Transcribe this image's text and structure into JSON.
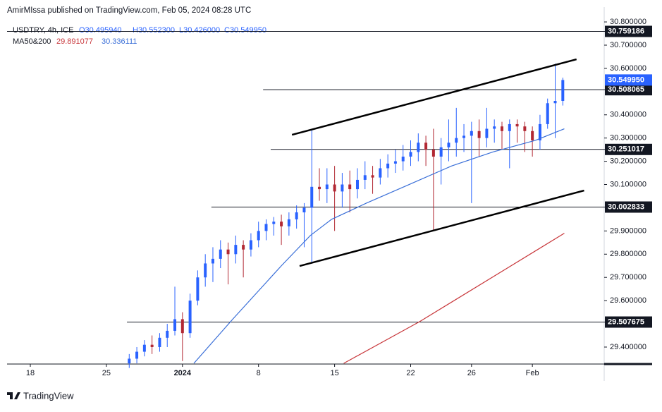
{
  "header": {
    "published": "AmirMIssa published on TradingView.com, Feb 05, 2024 08:28 UTC",
    "symbol": "USDTRY, 4h, ICE",
    "open": "O30.495940",
    "high": "H30.552300",
    "low": "L30.426000",
    "close": "C30.549950",
    "ma_label": "MA50&200",
    "ma200_value": "29.891077",
    "ma50_value": "30.336111"
  },
  "footer": {
    "logo": "TradingView"
  },
  "chart_data": {
    "type": "candlestick",
    "up_color": "#2962ff",
    "down_color": "#b22833",
    "xlim": [
      -1.53,
      37.72
    ],
    "ylim": [
      29.327,
      30.864
    ],
    "xticks": [
      {
        "value": 0,
        "label": "18"
      },
      {
        "value": 5,
        "label": "25"
      },
      {
        "value": 10,
        "label": "2024"
      },
      {
        "value": 15,
        "label": "8"
      },
      {
        "value": 20,
        "label": "15"
      },
      {
        "value": 25,
        "label": "22"
      },
      {
        "value": 29,
        "label": "26"
      },
      {
        "value": 33,
        "label": "Feb"
      }
    ],
    "yticks": [
      {
        "value": 30.8,
        "label": "30.800000"
      },
      {
        "value": 30.7,
        "label": "30.700000"
      },
      {
        "value": 30.6,
        "label": "30.600000"
      },
      {
        "value": 30.4,
        "label": "30.400000"
      },
      {
        "value": 30.3,
        "label": "30.300000"
      },
      {
        "value": 30.2,
        "label": "30.200000"
      },
      {
        "value": 30.1,
        "label": "30.100000"
      },
      {
        "value": 29.9,
        "label": "29.900000"
      },
      {
        "value": 29.8,
        "label": "29.800000"
      },
      {
        "value": 29.7,
        "label": "29.700000"
      },
      {
        "value": 29.6,
        "label": "29.600000"
      },
      {
        "value": 29.4,
        "label": "29.400000"
      }
    ],
    "x": [
      6.5,
      7,
      7.5,
      8,
      8.5,
      9,
      9.5,
      10,
      10.5,
      11,
      11.5,
      12,
      12.5,
      13,
      13.5,
      14,
      14.5,
      15,
      15.5,
      16,
      16.5,
      17,
      17.5,
      18,
      18.5,
      19,
      19.5,
      20,
      20.5,
      21,
      21.5,
      22,
      22.5,
      23,
      23.5,
      24,
      24.5,
      25,
      25.5,
      26,
      26.5,
      27,
      27.5,
      28,
      28.5,
      29,
      29.5,
      30,
      30.5,
      31,
      31.5,
      32,
      32.5,
      33,
      33.5,
      34,
      34.5,
      35
    ],
    "open": [
      29.33,
      29.35,
      29.38,
      29.41,
      29.4,
      29.44,
      29.47,
      29.52,
      29.46,
      29.6,
      29.7,
      29.76,
      29.78,
      29.82,
      29.8,
      29.84,
      29.82,
      29.86,
      29.9,
      29.93,
      29.94,
      29.92,
      29.95,
      29.98,
      30.0,
      30.09,
      30.08,
      30.1,
      30.07,
      30.1,
      30.08,
      30.12,
      30.14,
      30.13,
      30.17,
      30.19,
      30.2,
      30.22,
      30.24,
      30.28,
      30.25,
      30.22,
      30.26,
      30.28,
      30.3,
      30.31,
      30.33,
      30.3,
      30.34,
      30.35,
      30.33,
      30.36,
      30.35,
      30.33,
      30.29,
      30.36,
      30.45,
      30.46
    ],
    "high": [
      29.37,
      29.4,
      29.43,
      29.45,
      29.46,
      29.5,
      29.66,
      29.55,
      29.63,
      29.73,
      29.8,
      29.83,
      29.86,
      29.85,
      29.88,
      29.86,
      29.89,
      29.94,
      29.95,
      29.96,
      29.97,
      29.98,
      30.01,
      30.02,
      30.34,
      30.17,
      30.17,
      30.18,
      30.15,
      30.16,
      30.17,
      30.2,
      30.18,
      30.21,
      30.23,
      30.25,
      30.27,
      30.29,
      30.32,
      30.31,
      30.34,
      30.3,
      30.38,
      30.43,
      30.36,
      30.37,
      30.38,
      30.43,
      30.38,
      30.37,
      30.38,
      30.38,
      30.37,
      30.35,
      30.4,
      30.47,
      30.62,
      30.56
    ],
    "low": [
      29.31,
      29.33,
      29.36,
      29.37,
      29.38,
      29.4,
      29.45,
      29.34,
      29.44,
      29.58,
      29.66,
      29.68,
      29.74,
      29.67,
      29.76,
      29.7,
      29.79,
      29.83,
      29.86,
      29.88,
      29.84,
      29.88,
      29.91,
      29.83,
      29.76,
      30.03,
      30.02,
      29.9,
      30.0,
      29.98,
      30.04,
      30.08,
      30.06,
      30.1,
      30.13,
      30.15,
      30.16,
      30.18,
      30.2,
      30.18,
      29.9,
      30.1,
      30.2,
      30.22,
      30.24,
      30.02,
      30.22,
      30.26,
      30.28,
      30.25,
      30.17,
      30.28,
      30.24,
      30.22,
      30.25,
      30.34,
      30.3,
      30.44
    ],
    "close": [
      29.35,
      29.38,
      29.41,
      29.4,
      29.44,
      29.47,
      29.52,
      29.46,
      29.6,
      29.7,
      29.76,
      29.78,
      29.82,
      29.8,
      29.84,
      29.82,
      29.86,
      29.9,
      29.93,
      29.94,
      29.92,
      29.95,
      29.98,
      30.0,
      30.09,
      30.08,
      30.1,
      30.07,
      30.1,
      30.08,
      30.12,
      30.14,
      30.13,
      30.17,
      30.19,
      30.2,
      30.22,
      30.24,
      30.28,
      30.25,
      30.22,
      30.26,
      30.28,
      30.3,
      30.31,
      30.33,
      30.3,
      30.34,
      30.35,
      30.33,
      30.36,
      30.35,
      30.33,
      30.29,
      30.36,
      30.45,
      30.46,
      30.55
    ],
    "series": [
      {
        "color": "#3a6fd8",
        "x": [
          10.75,
          13.3,
          16.5,
          18.4,
          19.8,
          22.1,
          24.9,
          27.7,
          30.4,
          33.2,
          35.1
        ],
        "values": [
          29.33,
          29.52,
          29.75,
          29.88,
          29.95,
          30.02,
          30.1,
          30.18,
          30.24,
          30.29,
          30.34
        ]
      },
      {
        "color": "#c8373b",
        "x": [
          20.6,
          25.6,
          35.1
        ],
        "values": [
          29.33,
          29.51,
          29.89
        ]
      }
    ],
    "hlines": [
      {
        "value": 30.759186,
        "start": -1.53
      },
      {
        "value": 30.508065,
        "start": 15.3
      },
      {
        "value": 30.251017,
        "start": 15.8
      },
      {
        "value": 30.002833,
        "start": 11.9
      },
      {
        "value": 29.507675,
        "start": 6.35
      }
    ],
    "trendlines": [
      {
        "x": [
          17.2,
          35.9
        ],
        "y": [
          30.314,
          30.639
        ]
      },
      {
        "x": [
          17.7,
          36.4
        ],
        "y": [
          29.749,
          30.074
        ]
      }
    ],
    "last_price": {
      "value": 30.54995,
      "label": "30.549950"
    }
  }
}
